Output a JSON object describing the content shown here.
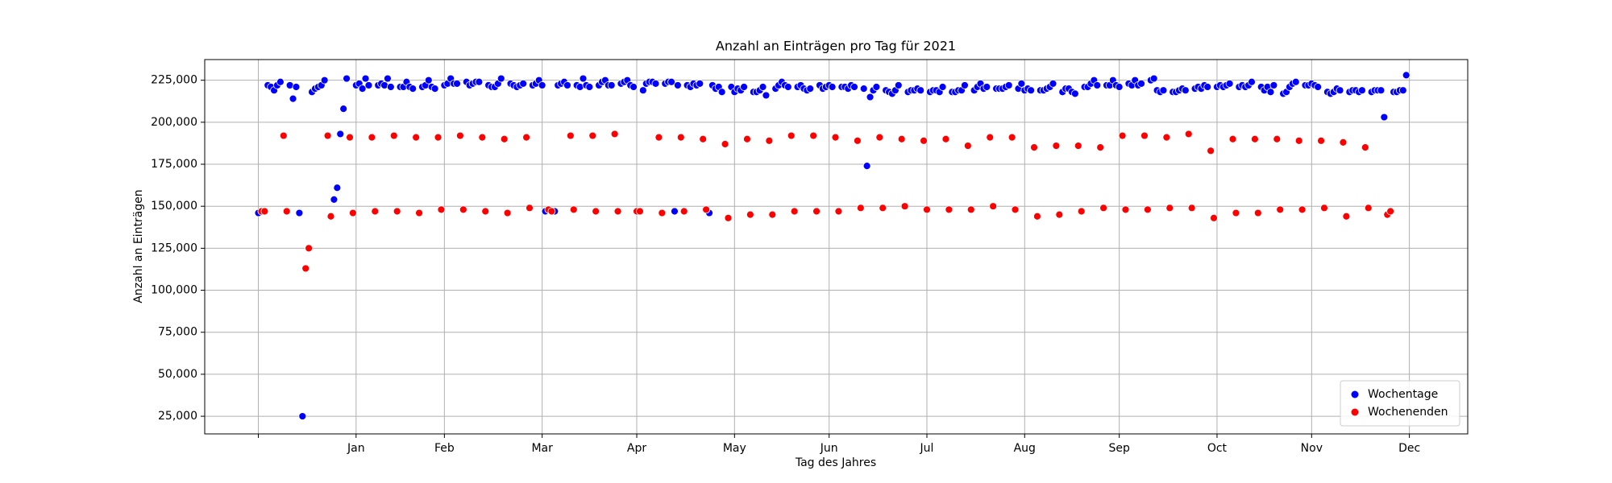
{
  "chart_data": {
    "type": "scatter",
    "title": "Anzahl an Einträgen pro Tag für 2021",
    "xlabel": "Tag des Jahres",
    "ylabel": "Anzahl an Einträgen",
    "xlim": [
      -17,
      383.5
    ],
    "ylim": [
      14500,
      237300
    ],
    "xticks": [
      {
        "value": 0,
        "label": null
      },
      {
        "value": 31,
        "label": "Jan"
      },
      {
        "value": 59,
        "label": "Feb"
      },
      {
        "value": 90,
        "label": "Mar"
      },
      {
        "value": 120,
        "label": "Apr"
      },
      {
        "value": 151,
        "label": "May"
      },
      {
        "value": 181,
        "label": "Jun"
      },
      {
        "value": 212,
        "label": "Jul"
      },
      {
        "value": 243,
        "label": "Aug"
      },
      {
        "value": 273,
        "label": "Sep"
      },
      {
        "value": 304,
        "label": "Oct"
      },
      {
        "value": 334,
        "label": "Nov"
      },
      {
        "value": 365,
        "label": "Dec"
      }
    ],
    "yticks": [
      {
        "value": 25000,
        "label": "25,000"
      },
      {
        "value": 50000,
        "label": "50,000"
      },
      {
        "value": 75000,
        "label": "75,000"
      },
      {
        "value": 100000,
        "label": "100,000"
      },
      {
        "value": 125000,
        "label": "125,000"
      },
      {
        "value": 150000,
        "label": "150,000"
      },
      {
        "value": 175000,
        "label": "175,000"
      },
      {
        "value": 200000,
        "label": "200,000"
      },
      {
        "value": 225000,
        "label": "225,000"
      }
    ],
    "grid": true,
    "legend": "lower right",
    "series": [
      {
        "name": "Wochentage",
        "color": "#0000ff",
        "x": [
          0,
          3,
          4,
          5,
          6,
          7,
          10,
          11,
          12,
          13,
          14,
          17,
          18,
          19,
          20,
          21,
          24,
          25,
          26,
          27,
          28,
          31,
          32,
          33,
          34,
          35,
          38,
          39,
          40,
          41,
          42,
          45,
          46,
          47,
          48,
          49,
          52,
          53,
          54,
          55,
          56,
          59,
          60,
          61,
          62,
          63,
          66,
          67,
          68,
          69,
          70,
          73,
          74,
          75,
          76,
          77,
          80,
          81,
          82,
          83,
          84,
          87,
          88,
          89,
          90,
          91,
          94,
          95,
          96,
          97,
          98,
          101,
          102,
          103,
          104,
          105,
          108,
          109,
          110,
          111,
          112,
          115,
          116,
          117,
          118,
          119,
          122,
          123,
          124,
          125,
          126,
          129,
          130,
          131,
          132,
          133,
          136,
          137,
          138,
          139,
          140,
          143,
          144,
          145,
          146,
          147,
          150,
          151,
          152,
          153,
          154,
          157,
          158,
          159,
          160,
          161,
          164,
          165,
          166,
          167,
          168,
          171,
          172,
          173,
          174,
          175,
          178,
          179,
          180,
          181,
          182,
          185,
          186,
          187,
          188,
          189,
          192,
          193,
          194,
          195,
          196,
          199,
          200,
          201,
          202,
          203,
          206,
          207,
          208,
          209,
          210,
          213,
          214,
          215,
          216,
          217,
          220,
          221,
          222,
          223,
          224,
          227,
          228,
          229,
          230,
          231,
          234,
          235,
          236,
          237,
          238,
          241,
          242,
          243,
          244,
          245,
          248,
          249,
          250,
          251,
          252,
          255,
          256,
          257,
          258,
          259,
          262,
          263,
          264,
          265,
          266,
          269,
          270,
          271,
          272,
          273,
          276,
          277,
          278,
          279,
          280,
          283,
          284,
          285,
          286,
          287,
          290,
          291,
          292,
          293,
          294,
          297,
          298,
          299,
          300,
          301,
          304,
          305,
          306,
          307,
          308,
          311,
          312,
          313,
          314,
          315,
          318,
          319,
          320,
          321,
          322,
          325,
          326,
          327,
          328,
          329,
          332,
          333,
          334,
          335,
          336,
          339,
          340,
          341,
          342,
          343,
          346,
          347,
          348,
          349,
          350,
          353,
          354,
          355,
          356,
          357,
          360,
          361,
          362,
          363,
          364
        ],
        "values": [
          146000,
          222000,
          221000,
          219000,
          222000,
          224000,
          222000,
          214000,
          221000,
          146000,
          25000,
          218000,
          220000,
          221000,
          222000,
          225000,
          154000,
          161000,
          193000,
          208000,
          226000,
          222000,
          223000,
          220000,
          226000,
          222000,
          222000,
          223000,
          222000,
          226000,
          221000,
          221000,
          221000,
          224000,
          221000,
          220000,
          221000,
          222000,
          225000,
          221000,
          220000,
          222000,
          223000,
          226000,
          223000,
          223000,
          224000,
          222000,
          223000,
          224000,
          224000,
          222000,
          221000,
          221000,
          223000,
          226000,
          223000,
          222000,
          221000,
          222000,
          223000,
          222000,
          223000,
          225000,
          222000,
          147000,
          147000,
          222000,
          223000,
          224000,
          222000,
          222000,
          221000,
          226000,
          222000,
          221000,
          222000,
          224000,
          225000,
          222000,
          222000,
          223000,
          224000,
          225000,
          222000,
          221000,
          219000,
          223000,
          224000,
          224000,
          223000,
          223000,
          224000,
          224000,
          147000,
          222000,
          222000,
          221000,
          223000,
          222000,
          223000,
          146000,
          222000,
          220000,
          221000,
          218000,
          221000,
          218000,
          220000,
          219000,
          221000,
          218000,
          218000,
          219000,
          221000,
          216000,
          220000,
          222000,
          224000,
          222000,
          221000,
          221000,
          222000,
          220000,
          219000,
          220000,
          222000,
          220000,
          221000,
          222000,
          221000,
          221000,
          221000,
          220000,
          222000,
          221000,
          220000,
          174000,
          215000,
          219000,
          221000,
          219000,
          218000,
          217000,
          219000,
          222000,
          218000,
          219000,
          219000,
          220000,
          219000,
          218000,
          219000,
          219000,
          218000,
          221000,
          218000,
          218000,
          219000,
          219000,
          222000,
          219000,
          221000,
          223000,
          220000,
          221000,
          220000,
          220000,
          220000,
          221000,
          222000,
          220000,
          223000,
          219000,
          220000,
          219000,
          219000,
          219000,
          220000,
          221000,
          223000,
          218000,
          220000,
          220000,
          218000,
          217000,
          221000,
          221000,
          223000,
          225000,
          222000,
          222000,
          222000,
          225000,
          222000,
          221000,
          223000,
          222000,
          225000,
          222000,
          223000,
          225000,
          226000,
          219000,
          218000,
          219000,
          218000,
          218000,
          219000,
          220000,
          219000,
          220000,
          221000,
          220000,
          222000,
          221000,
          221000,
          222000,
          221000,
          222000,
          223000,
          221000,
          222000,
          221000,
          222000,
          224000,
          221000,
          219000,
          221000,
          218000,
          222000,
          217000,
          218000,
          221000,
          223000,
          224000,
          222000,
          222000,
          223000,
          222000,
          221000,
          218000,
          217000,
          218000,
          220000,
          219000,
          218000,
          219000,
          219000,
          218000,
          219000,
          218000,
          219000,
          219000,
          219000,
          203000,
          218000,
          218000,
          219000,
          219000,
          228000
        ]
      },
      {
        "name": "Wochenenden",
        "color": "#ff0000",
        "x": [
          1,
          2,
          8,
          9,
          15,
          16,
          22,
          23,
          29,
          30,
          36,
          37,
          43,
          44,
          50,
          51,
          57,
          58,
          64,
          65,
          71,
          72,
          78,
          79,
          85,
          86,
          92,
          93,
          99,
          100,
          106,
          107,
          113,
          114,
          120,
          121,
          127,
          128,
          134,
          135,
          141,
          142,
          148,
          149,
          155,
          156,
          162,
          163,
          169,
          170,
          176,
          177,
          183,
          184,
          190,
          191,
          197,
          198,
          204,
          205,
          211,
          212,
          218,
          219,
          225,
          226,
          232,
          233,
          239,
          240,
          246,
          247,
          253,
          254,
          260,
          261,
          267,
          268,
          274,
          275,
          281,
          282,
          288,
          289,
          295,
          296,
          302,
          303,
          309,
          310,
          316,
          317,
          323,
          324,
          330,
          331,
          337,
          338,
          344,
          345,
          351,
          352,
          358,
          359
        ],
        "values": [
          147000,
          147000,
          192000,
          147000,
          113000,
          125000,
          192000,
          144000,
          191000,
          146000,
          191000,
          147000,
          192000,
          147000,
          191000,
          146000,
          191000,
          148000,
          192000,
          148000,
          191000,
          147000,
          190000,
          146000,
          191000,
          149000,
          148000,
          147000,
          192000,
          148000,
          192000,
          147000,
          193000,
          147000,
          147000,
          147000,
          191000,
          146000,
          191000,
          147000,
          190000,
          148000,
          187000,
          143000,
          190000,
          145000,
          189000,
          145000,
          192000,
          147000,
          192000,
          147000,
          191000,
          147000,
          189000,
          149000,
          191000,
          149000,
          190000,
          150000,
          189000,
          148000,
          190000,
          148000,
          186000,
          148000,
          191000,
          150000,
          191000,
          148000,
          185000,
          144000,
          186000,
          145000,
          186000,
          147000,
          185000,
          149000,
          192000,
          148000,
          192000,
          148000,
          191000,
          149000,
          193000,
          149000,
          183000,
          143000,
          190000,
          146000,
          190000,
          146000,
          190000,
          148000,
          189000,
          148000,
          189000,
          149000,
          188000,
          144000,
          185000,
          149000,
          145000,
          147000
        ]
      }
    ]
  }
}
